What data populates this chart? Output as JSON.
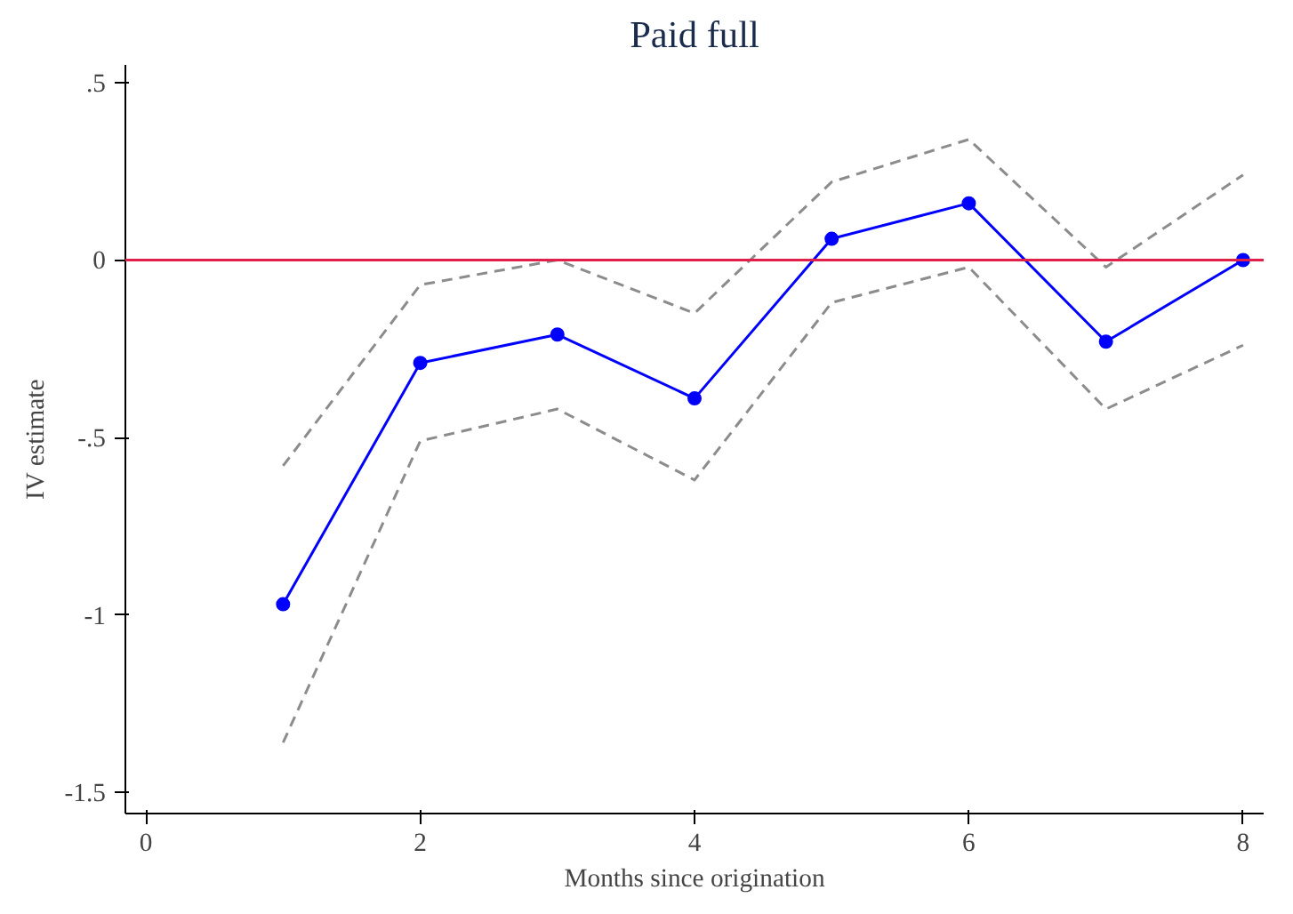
{
  "chart_data": {
    "type": "line",
    "title": "Paid full",
    "xlabel": "Months since origination",
    "ylabel": "IV estimate",
    "x": [
      1,
      2,
      3,
      4,
      5,
      6,
      7,
      8
    ],
    "series": [
      {
        "color": "#0000ff",
        "marker": "circle",
        "line_style": "solid",
        "values": [
          -0.97,
          -0.29,
          -0.21,
          -0.39,
          0.06,
          0.16,
          -0.23,
          0.0
        ]
      },
      {
        "color": "#8c8c8c",
        "marker": "none",
        "line_style": "dashed",
        "values": [
          -0.58,
          -0.07,
          0.0,
          -0.15,
          0.22,
          0.34,
          -0.02,
          0.24
        ]
      },
      {
        "color": "#8c8c8c",
        "marker": "none",
        "line_style": "dashed",
        "values": [
          -1.36,
          -0.51,
          -0.42,
          -0.62,
          -0.12,
          -0.02,
          -0.42,
          -0.24
        ]
      }
    ],
    "ref_lines": [
      {
        "axis": "y",
        "value": 0,
        "color": "#e0204a"
      }
    ],
    "xlim": [
      -0.15,
      8.15
    ],
    "ylim": [
      -1.56,
      0.55
    ],
    "xticks": [
      0,
      2,
      4,
      6,
      8
    ],
    "yticks": [
      {
        "value": 0.5,
        "label": ".5"
      },
      0,
      {
        "value": -0.5,
        "label": "-.5"
      },
      -1,
      -1.5
    ],
    "grid": false
  }
}
